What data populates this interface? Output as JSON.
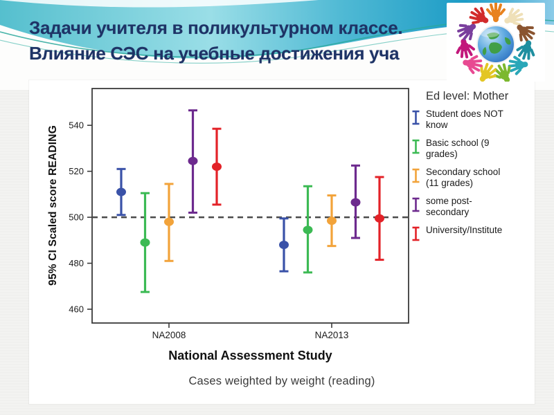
{
  "slide": {
    "title_lines": [
      "Задачи учителя в поликультурном классе.",
      "Влияние СЭС на учебные достижения уча"
    ]
  },
  "chart_data": {
    "type": "errorbar",
    "legend_title": "Ed level: Mother",
    "ylabel": "95% CI Scaled score READING",
    "xlabel": "National Assessment Study",
    "caption": "Cases weighted by weight (reading)",
    "categories": [
      "NA2008",
      "NA2013"
    ],
    "yticks": [
      460,
      480,
      500,
      520,
      540
    ],
    "ylim": [
      454,
      556
    ],
    "reference_line_y": 500,
    "grid": false,
    "legend_position": "right",
    "series": [
      {
        "name": "Student does NOT\nknow",
        "color": "#3a52a8",
        "means": [
          511,
          488
        ],
        "ci_low": [
          501,
          476.5
        ],
        "ci_high": [
          521,
          499.5
        ]
      },
      {
        "name": "Basic school (9\ngrades)",
        "color": "#3cba54",
        "means": [
          489,
          494.5
        ],
        "ci_low": [
          467.5,
          476
        ],
        "ci_high": [
          510.5,
          513.5
        ]
      },
      {
        "name": "Secondary school\n(11 grades)",
        "color": "#f2a33a",
        "means": [
          498,
          498.5
        ],
        "ci_low": [
          481,
          487.5
        ],
        "ci_high": [
          514.5,
          509.5
        ]
      },
      {
        "name": "some post-\nsecondary",
        "color": "#6d2a8e",
        "means": [
          524.5,
          506.5
        ],
        "ci_low": [
          502,
          491
        ],
        "ci_high": [
          546.5,
          522.5
        ]
      },
      {
        "name": "University/Institute",
        "color": "#e32228",
        "means": [
          522,
          499.5
        ],
        "ci_low": [
          505.5,
          481.5
        ],
        "ci_high": [
          538.5,
          517.5
        ]
      }
    ]
  },
  "colors": {
    "reference_line": "#4a4a4a",
    "frame": "#3a3a3a",
    "tick_text": "#1a1a1a",
    "title_text": "#1e3366"
  }
}
